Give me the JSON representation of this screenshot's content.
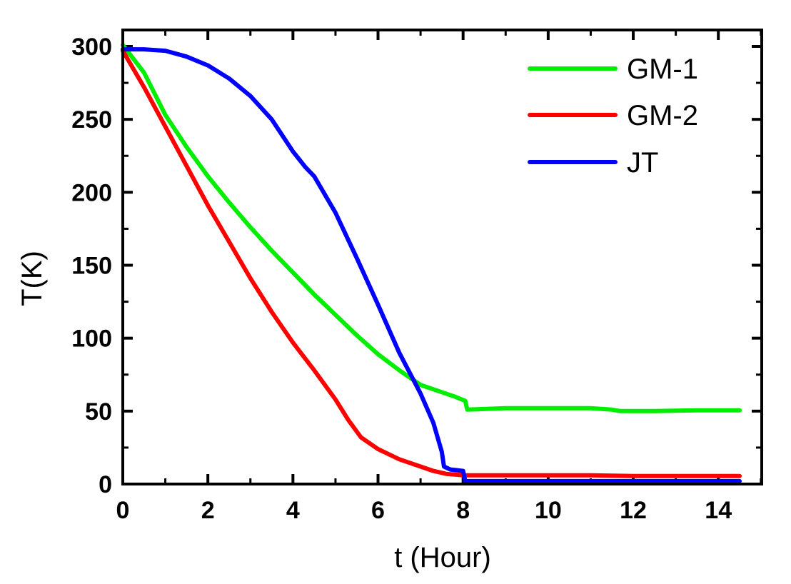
{
  "chart_data": {
    "type": "line",
    "title": "",
    "xlabel": "t (Hour)",
    "ylabel": "T(K)",
    "xlim": [
      0,
      15
    ],
    "ylim": [
      0,
      320
    ],
    "x_ticks": [
      "0",
      "2",
      "4",
      "6",
      "8",
      "10",
      "12",
      "14"
    ],
    "y_ticks": [
      "0",
      "50",
      "100",
      "150",
      "200",
      "250",
      "300"
    ],
    "grid": false,
    "legend_position": "top-right",
    "series": [
      {
        "name": "GM-1",
        "color": "#00ee00",
        "points": [
          [
            0,
            301
          ],
          [
            0.5,
            282
          ],
          [
            1,
            253
          ],
          [
            1.5,
            231
          ],
          [
            2,
            211
          ],
          [
            2.5,
            193
          ],
          [
            3,
            176
          ],
          [
            3.5,
            160
          ],
          [
            4,
            145
          ],
          [
            4.5,
            130
          ],
          [
            5,
            116
          ],
          [
            5.5,
            102
          ],
          [
            6,
            89
          ],
          [
            6.5,
            78
          ],
          [
            7,
            68
          ],
          [
            7.5,
            63
          ],
          [
            7.8,
            60
          ],
          [
            8.05,
            57
          ],
          [
            8.1,
            51
          ],
          [
            9,
            52
          ],
          [
            10,
            52
          ],
          [
            11,
            52
          ],
          [
            11.5,
            51
          ],
          [
            11.7,
            50
          ],
          [
            12.5,
            50
          ],
          [
            13.5,
            50.5
          ],
          [
            14.5,
            50.5
          ]
        ]
      },
      {
        "name": "GM-2",
        "color": "#ff0000",
        "points": [
          [
            0,
            297
          ],
          [
            0.5,
            272
          ],
          [
            1,
            245
          ],
          [
            1.5,
            218
          ],
          [
            2,
            191
          ],
          [
            2.5,
            166
          ],
          [
            3,
            141
          ],
          [
            3.5,
            118
          ],
          [
            4,
            97
          ],
          [
            4.5,
            78
          ],
          [
            5,
            58
          ],
          [
            5.3,
            44
          ],
          [
            5.6,
            32
          ],
          [
            6,
            24
          ],
          [
            6.5,
            17
          ],
          [
            7,
            12
          ],
          [
            7.3,
            9
          ],
          [
            7.6,
            7
          ],
          [
            8,
            6
          ],
          [
            9,
            6
          ],
          [
            10,
            6
          ],
          [
            11,
            6
          ],
          [
            12,
            5.5
          ],
          [
            13,
            5.5
          ],
          [
            14.5,
            5.5
          ]
        ]
      },
      {
        "name": "JT",
        "color": "#0000ff",
        "points": [
          [
            0,
            298
          ],
          [
            0.5,
            298
          ],
          [
            1,
            297
          ],
          [
            1.5,
            293
          ],
          [
            2,
            287
          ],
          [
            2.5,
            278
          ],
          [
            3,
            266
          ],
          [
            3.5,
            250
          ],
          [
            4,
            228
          ],
          [
            4.3,
            217
          ],
          [
            4.5,
            211
          ],
          [
            5,
            186
          ],
          [
            5.5,
            155
          ],
          [
            6,
            123
          ],
          [
            6.5,
            90
          ],
          [
            7,
            62
          ],
          [
            7.3,
            42
          ],
          [
            7.5,
            22
          ],
          [
            7.55,
            12
          ],
          [
            7.7,
            10
          ],
          [
            8,
            9
          ],
          [
            8.05,
            2
          ],
          [
            9,
            2
          ],
          [
            10,
            2
          ],
          [
            11,
            2
          ],
          [
            12,
            2
          ],
          [
            13,
            2
          ],
          [
            14.5,
            2
          ]
        ]
      }
    ]
  }
}
